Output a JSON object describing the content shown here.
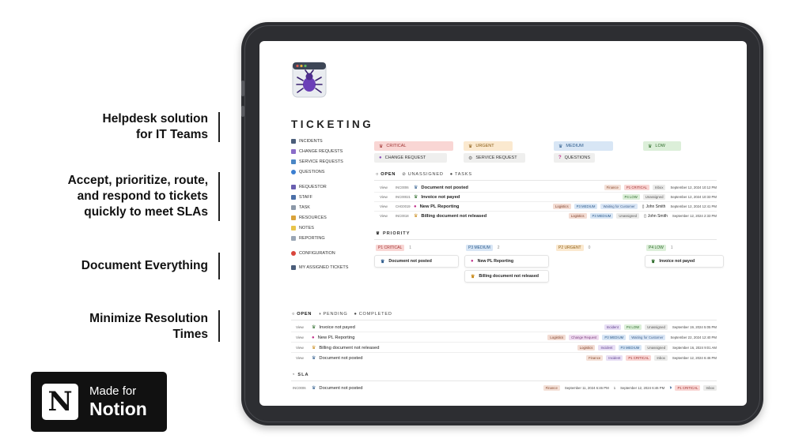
{
  "taglines": [
    {
      "line1": "Helpdesk solution",
      "line2": "for IT Teams"
    },
    {
      "line1": "Accept, prioritize, route,",
      "line2": "and respond to tickets",
      "line3": "quickly to meet SLAs"
    },
    {
      "line1": "Document Everything"
    },
    {
      "line1": "Minimize Resolution",
      "line2": "Times"
    }
  ],
  "badge": {
    "logo_letter": "N",
    "line1": "Made for",
    "line2": "Notion"
  },
  "page": {
    "title": "TICKETING"
  },
  "nav": {
    "group1": [
      "INCIDENTS",
      "CHANGE REQUESTS",
      "SERVICE REQUESTS",
      "QUESTIONS"
    ],
    "group2": [
      "REQUESTOR",
      "STAFF",
      "TASK",
      "RESOURCES",
      "NOTES",
      "REPORTING"
    ],
    "config": "CONFIGURATION",
    "assigned": "MY ASSIGNED TICKETS"
  },
  "quick_tags": {
    "critical": "CRITICAL",
    "urgent": "URGENT",
    "medium": "MEDIUM",
    "low": "LOW",
    "change_request": "CHANGE REQUEST",
    "service_request": "SERVICE REQUEST",
    "questions": "QUESTIONS"
  },
  "tabs1": {
    "open": "OPEN",
    "unassigned": "UNASSIGNED",
    "tasks": "TASKS"
  },
  "tickets1": [
    {
      "view": "View",
      "id": "INC0006",
      "title": "Document not posted",
      "tags": [
        "Finance",
        "P1 CRITICAL",
        "Inbox"
      ],
      "date": "September 12, 2024 10:12 PM"
    },
    {
      "view": "View",
      "id": "INC00021",
      "title": "Invoice not payed",
      "tags": [
        "P4 LOW",
        "Unassigned"
      ],
      "date": "September 12, 2024 10:33 PM"
    },
    {
      "view": "View",
      "id": "CHG0019",
      "title": "New PL Reporting",
      "tags": [
        "Logistics",
        "P3 MEDIUM",
        "Waiting for Customer"
      ],
      "assignee": "John Smith",
      "date": "September 12, 2024 12:41 PM"
    },
    {
      "view": "View",
      "id": "INC0018",
      "title": "Billing document not released",
      "tags": [
        "Logistics",
        "P3 MEDIUM",
        "Unassigned"
      ],
      "assignee": "John Smith",
      "date": "September 12, 2024 2:33 PM"
    }
  ],
  "priority": {
    "heading": "PRIORITY",
    "columns": [
      {
        "label": "P1 CRITICAL",
        "count": "1",
        "cards": [
          "Document not posted"
        ]
      },
      {
        "label": "P3 MEDIUM",
        "count": "2",
        "cards": [
          "New PL Reporting",
          "Billing document not released"
        ]
      },
      {
        "label": "P2 URGENT",
        "count": "0",
        "cards": []
      },
      {
        "label": "P4 LOW",
        "count": "1",
        "cards": [
          "Invoice not payed"
        ]
      }
    ]
  },
  "tabs2": {
    "open": "OPEN",
    "pending": "PENDING",
    "completed": "COMPLETED"
  },
  "tickets2": [
    {
      "view": "View",
      "title": "Invoice not payed",
      "tags": [
        "Incident",
        "P4 LOW",
        "Unassigned"
      ],
      "date": "September 19, 2024 5:05 PM"
    },
    {
      "view": "View",
      "title": "New PL Reporting",
      "tags": [
        "Logistics",
        "Change Request",
        "P3 MEDIUM",
        "Waiting for Customer"
      ],
      "date": "September 22, 2024 12:40 PM"
    },
    {
      "view": "View",
      "title": "Billing document not released",
      "tags": [
        "Logistics",
        "Incident",
        "P3 MEDIUM",
        "Unassigned"
      ],
      "date": "September 16, 2024 9:01 AM"
    },
    {
      "view": "View",
      "title": "Document not posted",
      "tags": [
        "Finance",
        "Incident",
        "P1 CRITICAL",
        "Inbox"
      ],
      "date": "September 12, 2024 6:46 PM"
    }
  ],
  "sla": {
    "heading": "SLA",
    "row": {
      "id": "INC0006",
      "title": "Document not posted",
      "dept": "Finance",
      "opened": "September 11, 2024 6:46 PM",
      "count": "1",
      "due": "September 12, 2024 6:46 PM",
      "priority": "P1 CRITICAL",
      "status": "Inbox"
    }
  },
  "colors": {
    "frame": "#2d2e32",
    "critical_bg": "#f9d6d4",
    "urgent_bg": "#fbe9cf",
    "medium_bg": "#d8e6f5",
    "low_bg": "#dcefd9"
  }
}
